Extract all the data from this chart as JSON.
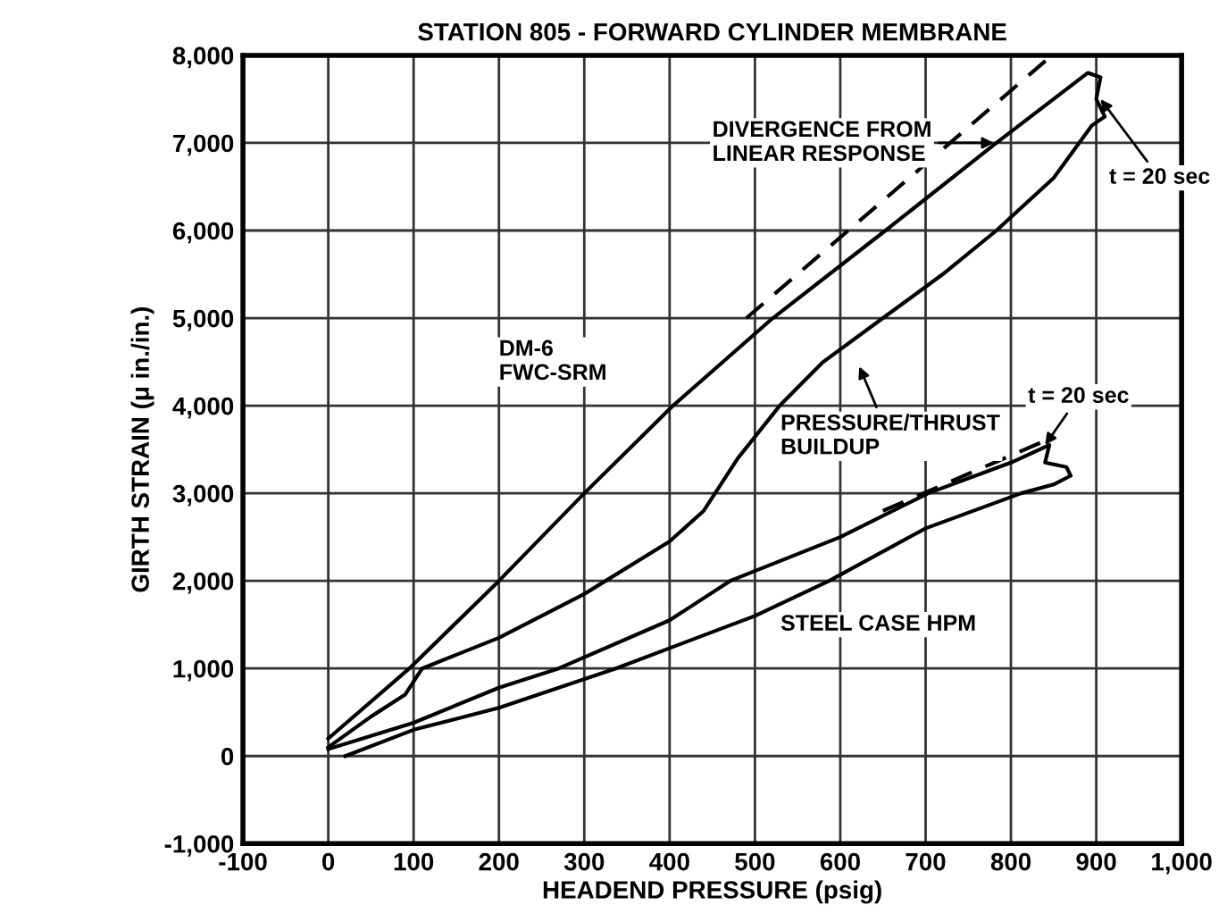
{
  "chart_data": {
    "type": "line",
    "title": "STATION 805 - FORWARD CYLINDER MEMBRANE",
    "xlabel": "HEADEND PRESSURE (psig)",
    "ylabel": "GIRTH STRAIN (μ in./in.)",
    "xlim": [
      -100,
      1000
    ],
    "ylim": [
      -1000,
      8000
    ],
    "xticks": [
      -100,
      0,
      100,
      200,
      300,
      400,
      500,
      600,
      700,
      800,
      900,
      {
        "value": 1000,
        "label": "1,000"
      }
    ],
    "yticks": [
      {
        "value": -1000,
        "label": "-1,000"
      },
      0,
      {
        "value": 1000,
        "label": "1,000"
      },
      {
        "value": 2000,
        "label": "2,000"
      },
      {
        "value": 3000,
        "label": "3,000"
      },
      {
        "value": 4000,
        "label": "4,000"
      },
      {
        "value": 5000,
        "label": "5,000"
      },
      {
        "value": 6000,
        "label": "6,000"
      },
      {
        "value": 7000,
        "label": "7,000"
      },
      {
        "value": 8000,
        "label": "8,000"
      }
    ],
    "grid": true,
    "legend": false,
    "marker": "none",
    "series": [
      {
        "color": "#000000",
        "line_style": "solid",
        "x": [
          0,
          50,
          90,
          110,
          200,
          300,
          400,
          440,
          480,
          529,
          580,
          650,
          720,
          783,
          850,
          895,
          910,
          900,
          905,
          890,
          783,
          653,
          521,
          404,
          300,
          200,
          95,
          0
        ],
        "values": [
          100,
          450,
          700,
          1000,
          1350,
          1850,
          2450,
          2800,
          3400,
          4000,
          4500,
          5000,
          5500,
          6000,
          6600,
          7200,
          7300,
          7500,
          7750,
          7800,
          7000,
          6000,
          5000,
          4000,
          3000,
          2000,
          1000,
          200
        ]
      },
      {
        "color": "#000000",
        "line_style": "dashed",
        "x": [
          490,
          848
        ],
        "values": [
          5000,
          8000
        ]
      },
      {
        "color": "#000000",
        "line_style": "solid",
        "x": [
          0,
          100,
          200,
          270,
          400,
          471,
          600,
          703,
          800,
          845,
          840,
          865,
          870,
          850,
          812,
          700,
          587,
          500,
          337,
          200,
          100,
          20
        ],
        "values": [
          80,
          380,
          780,
          1000,
          1550,
          2000,
          2500,
          3000,
          3350,
          3550,
          3350,
          3300,
          3200,
          3100,
          3000,
          2600,
          2000,
          1600,
          1000,
          550,
          300,
          0
        ]
      },
      {
        "color": "#000000",
        "line_style": "dashed",
        "x": [
          650,
          840
        ],
        "values": [
          2800,
          3600
        ]
      }
    ],
    "annotations": [
      {
        "text": "DIVERGENCE FROM\nLINEAR RESPONSE",
        "x": 780,
        "y": 7000
      },
      {
        "text": "t = 20 sec",
        "x": 905,
        "y": 7500
      },
      "DM-6\nFWC-SRM",
      "PRESSURE/THRUST\nBUILDUP",
      {
        "text": "t = 20 sec",
        "x": 840,
        "y": 3550
      },
      "STEEL CASE HPM"
    ]
  }
}
